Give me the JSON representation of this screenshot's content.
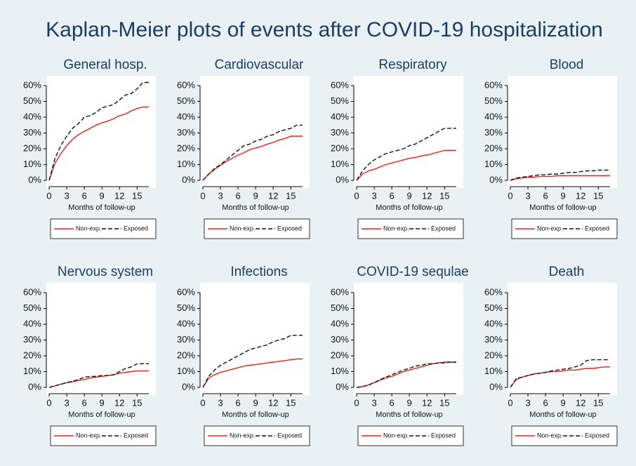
{
  "title": "Kaplan-Meier plots of events after COVID-19 hospitalization",
  "chart_data": [
    {
      "type": "line",
      "title": "General hosp.",
      "xlabel": "Months of follow-up",
      "x": [
        0,
        1,
        2,
        3,
        4,
        5,
        6,
        7,
        8,
        9,
        10,
        11,
        12,
        13,
        14,
        15,
        16,
        17
      ],
      "xlim": [
        0,
        17
      ],
      "xticks": [
        0,
        3,
        6,
        9,
        12,
        15
      ],
      "ylim": [
        0,
        60
      ],
      "yticks": [
        {
          "value": 0,
          "label": "0%"
        },
        {
          "value": 10,
          "label": "10%"
        },
        {
          "value": 20,
          "label": "20%"
        },
        {
          "value": 30,
          "label": "30%"
        },
        {
          "value": 40,
          "label": "40%"
        },
        {
          "value": 50,
          "label": "50%"
        },
        {
          "value": 60,
          "label": "60%"
        }
      ],
      "series": [
        {
          "name": "Non-exp.",
          "color": "#e8201c",
          "dash": false,
          "values": [
            0,
            11,
            17,
            22,
            26,
            29,
            31,
            33,
            35,
            36.5,
            37.5,
            39,
            41,
            42,
            44,
            45.5,
            46.5,
            46.5
          ]
        },
        {
          "name": "Exposed",
          "color": "#111111",
          "dash": true,
          "values": [
            0,
            14,
            22,
            28,
            33,
            36,
            40,
            41,
            43,
            46,
            47,
            48,
            51,
            54,
            55,
            58,
            62,
            62
          ]
        }
      ]
    },
    {
      "type": "line",
      "title": "Cardiovascular",
      "xlabel": "Months of follow-up",
      "x": [
        0,
        1,
        2,
        3,
        4,
        5,
        6,
        7,
        8,
        9,
        10,
        11,
        12,
        13,
        14,
        15,
        16,
        17
      ],
      "xlim": [
        0,
        17
      ],
      "xticks": [
        0,
        3,
        6,
        9,
        12,
        15
      ],
      "ylim": [
        0,
        60
      ],
      "yticks": [
        {
          "value": 0,
          "label": "0%"
        },
        {
          "value": 10,
          "label": "10%"
        },
        {
          "value": 20,
          "label": "20%"
        },
        {
          "value": 30,
          "label": "30%"
        },
        {
          "value": 40,
          "label": "40%"
        },
        {
          "value": 50,
          "label": "50%"
        },
        {
          "value": 60,
          "label": "60%"
        }
      ],
      "series": [
        {
          "name": "Non-exp.",
          "color": "#e8201c",
          "dash": false,
          "values": [
            0,
            4,
            7,
            9.5,
            12,
            14,
            16,
            17.5,
            19.5,
            20.5,
            21.5,
            23,
            24,
            25.5,
            26.5,
            28,
            28,
            28
          ]
        },
        {
          "name": "Exposed",
          "color": "#111111",
          "dash": true,
          "values": [
            0,
            4,
            7.5,
            10,
            13,
            16,
            19,
            22,
            23,
            25,
            26,
            28,
            29,
            31,
            32,
            33,
            35,
            35
          ]
        }
      ]
    },
    {
      "type": "line",
      "title": "Respiratory",
      "xlabel": "Months of follow-up",
      "x": [
        0,
        1,
        2,
        3,
        4,
        5,
        6,
        7,
        8,
        9,
        10,
        11,
        12,
        13,
        14,
        15,
        16,
        17
      ],
      "xlim": [
        0,
        17
      ],
      "xticks": [
        0,
        3,
        6,
        9,
        12,
        15
      ],
      "ylim": [
        0,
        60
      ],
      "yticks": [
        {
          "value": 0,
          "label": "0%"
        },
        {
          "value": 10,
          "label": "10%"
        },
        {
          "value": 20,
          "label": "20%"
        },
        {
          "value": 30,
          "label": "30%"
        },
        {
          "value": 40,
          "label": "40%"
        },
        {
          "value": 50,
          "label": "50%"
        },
        {
          "value": 60,
          "label": "60%"
        }
      ],
      "series": [
        {
          "name": "Non-exp.",
          "color": "#e8201c",
          "dash": false,
          "values": [
            0,
            4,
            6,
            7,
            8.5,
            10,
            11,
            12,
            13,
            14,
            14.5,
            15.5,
            16,
            17,
            18,
            19,
            19,
            19
          ]
        },
        {
          "name": "Exposed",
          "color": "#111111",
          "dash": true,
          "values": [
            0,
            6,
            10,
            13,
            15,
            17,
            18,
            19,
            20,
            22,
            23,
            25,
            27,
            29,
            31,
            33,
            33,
            33
          ]
        }
      ]
    },
    {
      "type": "line",
      "title": "Blood",
      "xlabel": "Months of follow-up",
      "x": [
        0,
        1,
        2,
        3,
        4,
        5,
        6,
        7,
        8,
        9,
        10,
        11,
        12,
        13,
        14,
        15,
        16,
        17
      ],
      "xlim": [
        0,
        17
      ],
      "xticks": [
        0,
        3,
        6,
        9,
        12,
        15
      ],
      "ylim": [
        0,
        60
      ],
      "yticks": [
        {
          "value": 0,
          "label": "0%"
        },
        {
          "value": 10,
          "label": "10%"
        },
        {
          "value": 20,
          "label": "20%"
        },
        {
          "value": 30,
          "label": "30%"
        },
        {
          "value": 40,
          "label": "40%"
        },
        {
          "value": 50,
          "label": "50%"
        },
        {
          "value": 60,
          "label": "60%"
        }
      ],
      "series": [
        {
          "name": "Non-exp.",
          "color": "#e8201c",
          "dash": false,
          "values": [
            0,
            1,
            1.5,
            2,
            2,
            2.5,
            2.5,
            2.5,
            3,
            3,
            3,
            3,
            3,
            3,
            3,
            3,
            3,
            3
          ]
        },
        {
          "name": "Exposed",
          "color": "#111111",
          "dash": true,
          "values": [
            0,
            1.5,
            2,
            2.5,
            3,
            3.5,
            3.5,
            4,
            4,
            4.5,
            5,
            5,
            5.5,
            6,
            6,
            6.5,
            6.5,
            6.5
          ]
        }
      ]
    },
    {
      "type": "line",
      "title": "Nervous system",
      "xlabel": "Months of follow-up",
      "x": [
        0,
        1,
        2,
        3,
        4,
        5,
        6,
        7,
        8,
        9,
        10,
        11,
        12,
        13,
        14,
        15,
        16,
        17
      ],
      "xlim": [
        0,
        17
      ],
      "xticks": [
        0,
        3,
        6,
        9,
        12,
        15
      ],
      "ylim": [
        0,
        60
      ],
      "yticks": [
        {
          "value": 0,
          "label": "0%"
        },
        {
          "value": 10,
          "label": "10%"
        },
        {
          "value": 20,
          "label": "20%"
        },
        {
          "value": 30,
          "label": "30%"
        },
        {
          "value": 40,
          "label": "40%"
        },
        {
          "value": 50,
          "label": "50%"
        },
        {
          "value": 60,
          "label": "60%"
        }
      ],
      "series": [
        {
          "name": "Non-exp.",
          "color": "#e8201c",
          "dash": false,
          "values": [
            0,
            1,
            2,
            3,
            3.5,
            4.5,
            5,
            6,
            6.5,
            7,
            7.5,
            8,
            9,
            9.5,
            10,
            10.5,
            10.5,
            10.5
          ]
        },
        {
          "name": "Exposed",
          "color": "#111111",
          "dash": true,
          "values": [
            0,
            1,
            2,
            3,
            4,
            5,
            6.5,
            7,
            7,
            7.5,
            7.5,
            8,
            10,
            12,
            13,
            15,
            15,
            15
          ]
        }
      ]
    },
    {
      "type": "line",
      "title": "Infections",
      "xlabel": "Months of follow-up",
      "x": [
        0,
        1,
        2,
        3,
        4,
        5,
        6,
        7,
        8,
        9,
        10,
        11,
        12,
        13,
        14,
        15,
        16,
        17
      ],
      "xlim": [
        0,
        17
      ],
      "xticks": [
        0,
        3,
        6,
        9,
        12,
        15
      ],
      "ylim": [
        0,
        60
      ],
      "yticks": [
        {
          "value": 0,
          "label": "0%"
        },
        {
          "value": 10,
          "label": "10%"
        },
        {
          "value": 20,
          "label": "20%"
        },
        {
          "value": 30,
          "label": "30%"
        },
        {
          "value": 40,
          "label": "40%"
        },
        {
          "value": 50,
          "label": "50%"
        },
        {
          "value": 60,
          "label": "60%"
        }
      ],
      "series": [
        {
          "name": "Non-exp.",
          "color": "#e8201c",
          "dash": false,
          "values": [
            0,
            6,
            8,
            9.5,
            10.5,
            11.5,
            12.5,
            13.5,
            14,
            14.5,
            15,
            15.5,
            16,
            16.5,
            17,
            17.5,
            18,
            18
          ]
        },
        {
          "name": "Exposed",
          "color": "#111111",
          "dash": true,
          "values": [
            0,
            7,
            11,
            14,
            16,
            18,
            20,
            22,
            24,
            25,
            26,
            27,
            29,
            30,
            31,
            33,
            33,
            33
          ]
        }
      ]
    },
    {
      "type": "line",
      "title": "COVID-19 sequlae",
      "xlabel": "Months of follow-up",
      "x": [
        0,
        1,
        2,
        3,
        4,
        5,
        6,
        7,
        8,
        9,
        10,
        11,
        12,
        13,
        14,
        15,
        16,
        17
      ],
      "xlim": [
        0,
        17
      ],
      "xticks": [
        0,
        3,
        6,
        9,
        12,
        15
      ],
      "ylim": [
        0,
        60
      ],
      "yticks": [
        {
          "value": 0,
          "label": "0%"
        },
        {
          "value": 10,
          "label": "10%"
        },
        {
          "value": 20,
          "label": "20%"
        },
        {
          "value": 30,
          "label": "30%"
        },
        {
          "value": 40,
          "label": "40%"
        },
        {
          "value": 50,
          "label": "50%"
        },
        {
          "value": 60,
          "label": "60%"
        }
      ],
      "series": [
        {
          "name": "Non-exp.",
          "color": "#e8201c",
          "dash": false,
          "values": [
            0,
            0.5,
            1.5,
            3,
            4.5,
            6,
            7,
            8.5,
            10,
            11,
            12,
            13,
            14,
            15,
            15.5,
            16,
            16,
            16
          ]
        },
        {
          "name": "Exposed",
          "color": "#111111",
          "dash": true,
          "values": [
            0,
            0.5,
            1.5,
            3,
            5,
            6.5,
            8,
            9.5,
            11,
            12,
            13.5,
            14,
            15,
            15,
            15.5,
            15.5,
            16,
            16
          ]
        }
      ]
    },
    {
      "type": "line",
      "title": "Death",
      "xlabel": "Months of follow-up",
      "x": [
        0,
        1,
        2,
        3,
        4,
        5,
        6,
        7,
        8,
        9,
        10,
        11,
        12,
        13,
        14,
        15,
        16,
        17
      ],
      "xlim": [
        0,
        17
      ],
      "xticks": [
        0,
        3,
        6,
        9,
        12,
        15
      ],
      "ylim": [
        0,
        60
      ],
      "yticks": [
        {
          "value": 0,
          "label": "0%"
        },
        {
          "value": 10,
          "label": "10%"
        },
        {
          "value": 20,
          "label": "20%"
        },
        {
          "value": 30,
          "label": "30%"
        },
        {
          "value": 40,
          "label": "40%"
        },
        {
          "value": 50,
          "label": "50%"
        },
        {
          "value": 60,
          "label": "60%"
        }
      ],
      "series": [
        {
          "name": "Non-exp.",
          "color": "#e8201c",
          "dash": false,
          "values": [
            0,
            5,
            6.5,
            7.5,
            8.5,
            9,
            9.5,
            10,
            10,
            10.5,
            11,
            11,
            11.5,
            12,
            12,
            12.5,
            13,
            13
          ]
        },
        {
          "name": "Exposed",
          "color": "#111111",
          "dash": true,
          "values": [
            0,
            5.5,
            6.5,
            7.5,
            8.5,
            9,
            9.5,
            10.5,
            11,
            11.5,
            12,
            13,
            14,
            17,
            17.5,
            17.5,
            17.5,
            17.5
          ]
        }
      ]
    }
  ]
}
